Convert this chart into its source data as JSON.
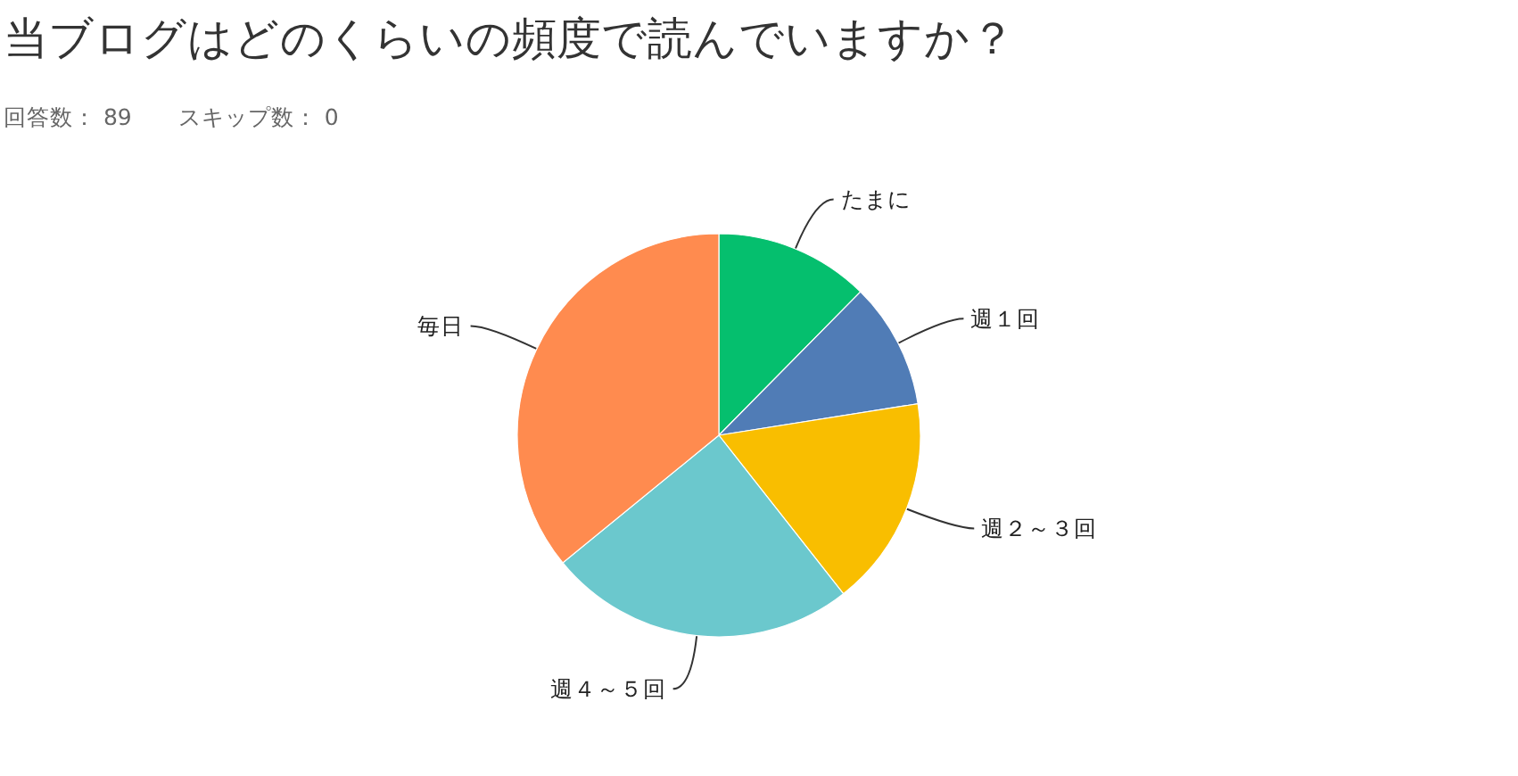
{
  "chart_data": {
    "type": "pie",
    "title": "当ブログはどのくらいの頻度で読んでいますか？",
    "subtitle": "回答数： 89　　スキップ数： 0",
    "categories": [
      "たまに",
      "週１回",
      "週２～３回",
      "週４～５回",
      "毎日"
    ],
    "values": [
      12.4,
      10.1,
      16.9,
      24.7,
      35.9
    ],
    "colors": [
      "#05bf6e",
      "#507cb6",
      "#f9be00",
      "#6bc8cd",
      "#ff8b4f"
    ]
  }
}
